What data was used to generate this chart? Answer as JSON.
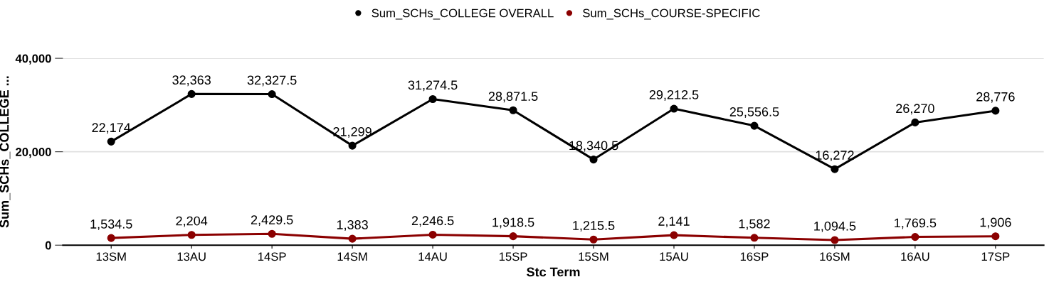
{
  "chart_data": {
    "type": "line",
    "xlabel": "Stc Term",
    "ylabel": "Sum_SCHs_COLLEGE ...",
    "categories": [
      "13SM",
      "13AU",
      "14SP",
      "14SM",
      "14AU",
      "15SP",
      "15SM",
      "15AU",
      "16SP",
      "16SM",
      "16AU",
      "17SP"
    ],
    "series": [
      {
        "name": "Sum_SCHs_COLLEGE OVERALL",
        "color": "#000000",
        "values": [
          22174,
          32363,
          32327.5,
          21299,
          31274.5,
          28871.5,
          18340.5,
          29212.5,
          25556.5,
          16272,
          26270,
          28776
        ],
        "value_labels": [
          "22,174",
          "32,363",
          "32,327.5",
          "21,299",
          "31,274.5",
          "28,871.5",
          "18,340.5",
          "29,212.5",
          "25,556.5",
          "16,272",
          "26,270",
          "28,776"
        ]
      },
      {
        "name": "Sum_SCHs_COURSE-SPECIFIC",
        "color": "#8b0000",
        "values": [
          1534.5,
          2204,
          2429.5,
          1383,
          2246.5,
          1918.5,
          1215.5,
          2141,
          1582,
          1094.5,
          1769.5,
          1906
        ],
        "value_labels": [
          "1,534.5",
          "2,204",
          "2,429.5",
          "1,383",
          "2,246.5",
          "1,918.5",
          "1,215.5",
          "2,141",
          "1,582",
          "1,094.5",
          "1,769.5",
          "1,906"
        ]
      }
    ],
    "ylim": [
      0,
      40000
    ],
    "yticks": [
      {
        "value": 0,
        "label": "0"
      },
      {
        "value": 20000,
        "label": "20,000"
      },
      {
        "value": 40000,
        "label": "40,000"
      }
    ],
    "grid": "y",
    "legend": "top",
    "marker": "circle",
    "line_style": "solid"
  }
}
